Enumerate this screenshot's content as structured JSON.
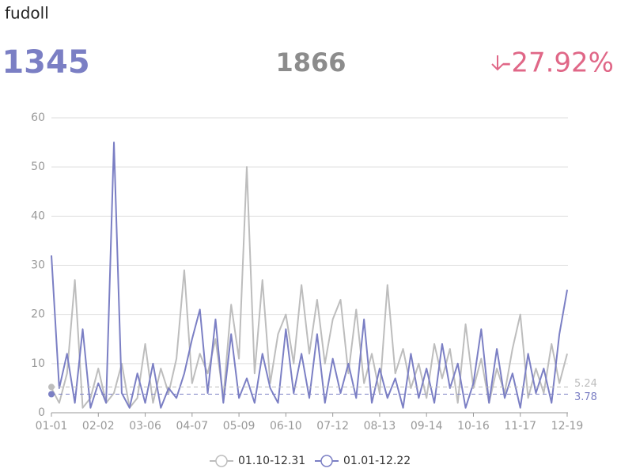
{
  "header": {
    "title": "fudoll",
    "current": 1345,
    "previous": 1866,
    "change": "-27.92%"
  },
  "chart_data": {
    "type": "line",
    "categories": [
      "01-01",
      null,
      null,
      null,
      null,
      null,
      "02-02",
      null,
      null,
      null,
      null,
      null,
      "03-06",
      null,
      null,
      null,
      null,
      null,
      "04-07",
      null,
      null,
      null,
      null,
      null,
      "05-09",
      null,
      null,
      null,
      null,
      null,
      "06-10",
      null,
      null,
      null,
      null,
      null,
      "07-12",
      null,
      null,
      null,
      null,
      null,
      "08-13",
      null,
      null,
      null,
      null,
      null,
      "09-14",
      null,
      null,
      null,
      null,
      null,
      "10-16",
      null,
      null,
      null,
      null,
      null,
      "11-17",
      null,
      null,
      null,
      null,
      null,
      "12-19"
    ],
    "series": [
      {
        "name": "01.10-12.31",
        "color": "#bdbdbd",
        "values": [
          5,
          2,
          8,
          27,
          1,
          3,
          9,
          2,
          4,
          10,
          1,
          3,
          14,
          2,
          9,
          4,
          11,
          29,
          6,
          12,
          8,
          15,
          3,
          22,
          11,
          50,
          8,
          27,
          6,
          16,
          20,
          10,
          26,
          12,
          23,
          10,
          19,
          23,
          8,
          21,
          6,
          12,
          4,
          26,
          8,
          13,
          5,
          10,
          3,
          14,
          7,
          13,
          2,
          18,
          5,
          11,
          2,
          9,
          4,
          13,
          20,
          3,
          9,
          4,
          14,
          6,
          12
        ]
      },
      {
        "name": "01.01-12.22",
        "color": "#7b7fc4",
        "values": [
          32,
          5,
          12,
          2,
          17,
          1,
          6,
          2,
          55,
          4,
          1,
          8,
          2,
          10,
          1,
          5,
          3,
          8,
          15,
          21,
          4,
          19,
          2,
          16,
          3,
          7,
          2,
          12,
          5,
          2,
          17,
          4,
          12,
          3,
          16,
          2,
          11,
          4,
          10,
          3,
          19,
          2,
          9,
          3,
          7,
          1,
          12,
          3,
          9,
          2,
          14,
          5,
          10,
          1,
          6,
          17,
          2,
          13,
          3,
          8,
          1,
          12,
          4,
          9,
          2,
          16,
          25
        ]
      }
    ],
    "mark_lines": [
      {
        "series": 0,
        "value": 5.24
      },
      {
        "series": 1,
        "value": 3.78
      }
    ],
    "ylim": [
      0,
      60
    ],
    "yticks": [
      0,
      10,
      20,
      30,
      40,
      50,
      60
    ],
    "grid": true
  }
}
